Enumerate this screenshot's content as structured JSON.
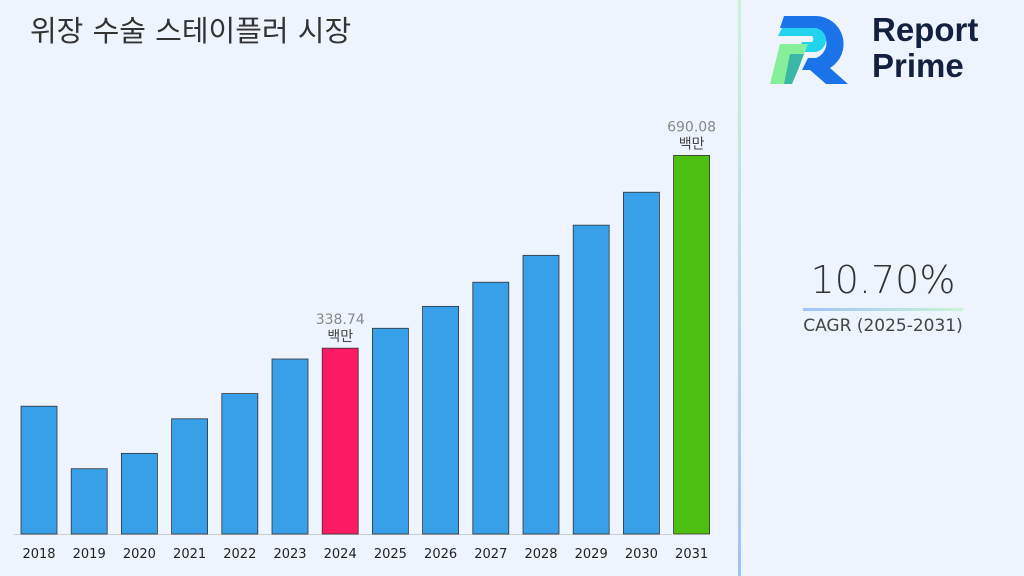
{
  "title": "위장 수술 스테이플러 시장",
  "logo": {
    "line1": "Report",
    "line2": "Prime"
  },
  "cagr": {
    "value": "10.70%",
    "label": "CAGR (2025-2031)"
  },
  "colors": {
    "default_bar": "#38a0e8",
    "highlight_2024": "#fc1a64",
    "highlight_2031": "#4cbf10"
  },
  "chart_data": {
    "type": "bar",
    "title": "위장 수술 스테이플러 시장",
    "categories": [
      "2018",
      "2019",
      "2020",
      "2021",
      "2022",
      "2023",
      "2024",
      "2025",
      "2026",
      "2027",
      "2028",
      "2029",
      "2030",
      "2031"
    ],
    "values": [
      233,
      119,
      147,
      210,
      256,
      319,
      338.74,
      375,
      415,
      459,
      508,
      563,
      623,
      690.08
    ],
    "data_labels": [
      {
        "category": "2024",
        "value": "338.74",
        "unit": "백만"
      },
      {
        "category": "2031",
        "value": "690.08",
        "unit": "백만"
      }
    ],
    "ylim": [
      0,
      700
    ],
    "grid": false,
    "legend": "none"
  }
}
